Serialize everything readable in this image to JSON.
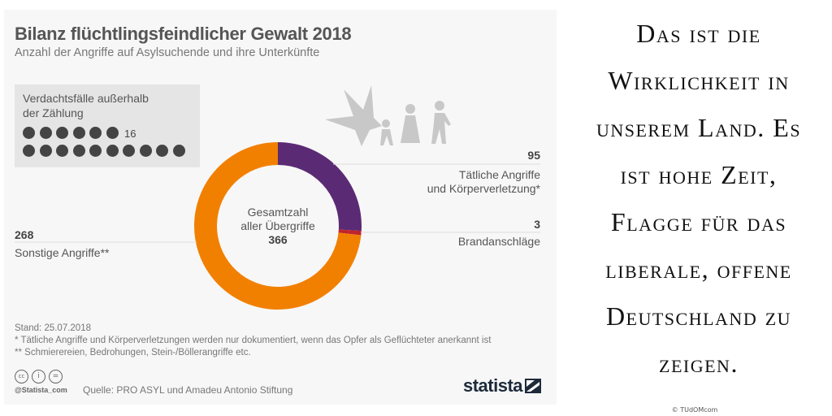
{
  "chart_data": {
    "type": "pie",
    "title": "Bilanz flüchtlingsfeindlicher Gewalt 2018",
    "subtitle": "Anzahl der Angriffe auf Asylsuchende und ihre Unterkünfte",
    "center_label": [
      "Gesamtzahl",
      "aller Übergriffe"
    ],
    "total": "366",
    "slices": [
      {
        "value": 95,
        "label_value": "95",
        "label": [
          "Tätliche Angriffe",
          "und Körperverletzung*"
        ],
        "color": "#5b2a74"
      },
      {
        "value": 3,
        "label_value": "3",
        "label": [
          "Brandanschläge"
        ],
        "color": "#c0242c"
      },
      {
        "value": 268,
        "label_value": "268",
        "label": [
          "Sonstige Angriffe**"
        ],
        "color": "#f28000"
      }
    ],
    "inset": {
      "title": [
        "Verdachtsfälle außerhalb",
        "der Zählung"
      ],
      "count": 16,
      "count_label": "16"
    }
  },
  "footer": {
    "date": "Stand: 25.07.2018",
    "note1": "*   Tätliche Angriffe und Körperverletzungen werden nur dokumentiert, wenn das Opfer als Geflüchteter anerkannt ist",
    "note2": "** Schmierereien, Bedrohungen, Stein-/Böllerangriffe etc.",
    "handle": "@Statista_com",
    "source": "Quelle: PRO ASYL und Amadeu Antonio Stiftung",
    "brand": "statista"
  },
  "quote": {
    "lines": [
      "Das ist die",
      "Wirklichkeit in",
      "unserem Land. Es",
      "ist hohe Zeit,",
      "Flagge für das",
      "liberale, offene",
      "Deutschland zu",
      "zeigen."
    ],
    "copyright": "© TUdOMcom"
  },
  "colors": {
    "panel": "#f7f7f7",
    "purple": "#5b2a74",
    "red": "#c0242c",
    "orange": "#f28000"
  }
}
